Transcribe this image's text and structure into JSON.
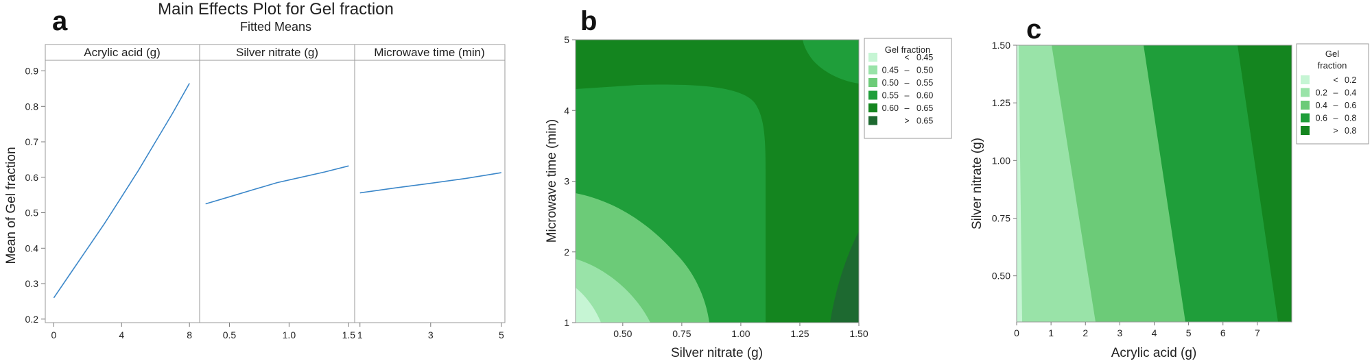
{
  "colors": {
    "effect_line": "#3b87c9",
    "green_levels": [
      "#c6f5d4",
      "#99e3a8",
      "#6ccb78",
      "#1f9e3a",
      "#14851f",
      "#1d6930"
    ]
  },
  "chart_data": [
    {
      "panel": "a",
      "type": "line",
      "title": "Main Effects Plot for Gel fraction",
      "subtitle": "Fitted Means",
      "ylabel": "Mean of Gel fraction",
      "ylim": [
        0.19,
        0.93
      ],
      "yticks": [
        "0.2",
        "0.3",
        "0.4",
        "0.5",
        "0.6",
        "0.7",
        "0.8",
        "0.9"
      ],
      "facets": [
        {
          "label": "Acrylic acid (g)",
          "xlim": [
            -0.5,
            8.6
          ],
          "xticks": [
            "0",
            "4",
            "8"
          ],
          "x": [
            0,
            1,
            2,
            3,
            4,
            5,
            6,
            7,
            8
          ],
          "y": [
            0.26,
            0.33,
            0.4,
            0.47,
            0.545,
            0.62,
            0.7,
            0.78,
            0.865
          ]
        },
        {
          "label": "Silver nitrate (g)",
          "xlim": [
            0.25,
            1.55
          ],
          "xticks": [
            "0.5",
            "1.0",
            "1.5"
          ],
          "x": [
            0.3,
            0.5,
            0.7,
            0.9,
            1.1,
            1.3,
            1.5
          ],
          "y": [
            0.525,
            0.545,
            0.565,
            0.585,
            0.6,
            0.615,
            0.632
          ]
        },
        {
          "label": "Microwave time (min)",
          "xlim": [
            0.85,
            5.1
          ],
          "xticks": [
            "1",
            "3",
            "5"
          ],
          "x": [
            1,
            2,
            3,
            4,
            5
          ],
          "y": [
            0.556,
            0.57,
            0.583,
            0.597,
            0.613
          ]
        }
      ]
    },
    {
      "panel": "b",
      "type": "heatmap",
      "xlabel": "Silver nitrate (g)",
      "ylabel": "Microwave time (min)",
      "xlim": [
        0.3,
        1.5
      ],
      "ylim": [
        1,
        5
      ],
      "xticks": [
        "0.50",
        "0.75",
        "1.00",
        "1.25",
        "1.50"
      ],
      "yticks": [
        "1",
        "2",
        "3",
        "4",
        "5"
      ],
      "legend_title": "Gel fraction",
      "legend": [
        {
          "low": "",
          "sep": "<",
          "high": "0.45"
        },
        {
          "low": "0.45",
          "sep": "–",
          "high": "0.50"
        },
        {
          "low": "0.50",
          "sep": "–",
          "high": "0.55"
        },
        {
          "low": "0.55",
          "sep": "–",
          "high": "0.60"
        },
        {
          "low": "0.60",
          "sep": "–",
          "high": "0.65"
        },
        {
          "low": "",
          "sep": ">",
          "high": "0.65"
        }
      ]
    },
    {
      "panel": "c",
      "type": "heatmap",
      "xlabel": "Acrylic acid (g)",
      "ylabel": "Silver nitrate (g)",
      "xlim": [
        0,
        8
      ],
      "ylim": [
        0.3,
        1.5
      ],
      "xticks": [
        "0",
        "1",
        "2",
        "3",
        "4",
        "5",
        "6",
        "7"
      ],
      "yticks": [
        "0.50",
        "0.75",
        "1.00",
        "1.25",
        "1.50"
      ],
      "legend_title": [
        "Gel",
        "fraction"
      ],
      "legend": [
        {
          "low": "",
          "sep": "<",
          "high": "0.2"
        },
        {
          "low": "0.2",
          "sep": "–",
          "high": "0.4"
        },
        {
          "low": "0.4",
          "sep": "–",
          "high": "0.6"
        },
        {
          "low": "0.6",
          "sep": "–",
          "high": "0.8"
        },
        {
          "low": "",
          "sep": ">",
          "high": "0.8"
        }
      ]
    }
  ]
}
